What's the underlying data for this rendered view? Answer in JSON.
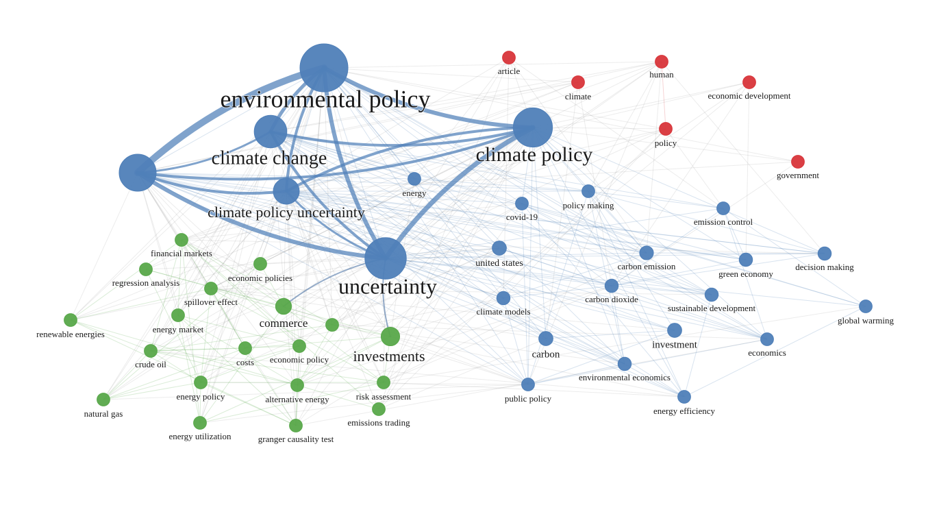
{
  "clusters": {
    "blue": {
      "color": "#4f7fb8"
    },
    "red": {
      "color": "#d8353a"
    },
    "green": {
      "color": "#58a84a"
    }
  },
  "nodes": [
    {
      "id": "environmental-policy",
      "label": "environmental policy",
      "cluster": "blue",
      "weight": 10
    },
    {
      "id": "climate-change",
      "label": "climate change",
      "cluster": "blue",
      "weight": 6.5
    },
    {
      "id": "climate-policy",
      "label": "climate policy",
      "cluster": "blue",
      "weight": 8
    },
    {
      "id": "uncertainty",
      "label": "uncertainty",
      "cluster": "blue",
      "weight": 8.5
    },
    {
      "id": "climate-policy-uncertainty",
      "label": "climate policy uncertainty",
      "cluster": "blue",
      "weight": 5
    },
    {
      "id": "unnamed-hub",
      "label": "",
      "cluster": "blue",
      "weight": 7.5
    },
    {
      "id": "energy",
      "label": "energy",
      "cluster": "blue",
      "weight": 2
    },
    {
      "id": "covid-19",
      "label": "covid-19",
      "cluster": "blue",
      "weight": 2
    },
    {
      "id": "policy-making",
      "label": "policy making",
      "cluster": "blue",
      "weight": 2
    },
    {
      "id": "emission-control",
      "label": "emission control",
      "cluster": "blue",
      "weight": 2
    },
    {
      "id": "united-states",
      "label": "united states",
      "cluster": "blue",
      "weight": 2.3
    },
    {
      "id": "carbon-emission",
      "label": "carbon emission",
      "cluster": "blue",
      "weight": 2.2
    },
    {
      "id": "green-economy",
      "label": "green economy",
      "cluster": "blue",
      "weight": 2.1
    },
    {
      "id": "decision-making",
      "label": "decision making",
      "cluster": "blue",
      "weight": 2.1
    },
    {
      "id": "carbon-dioxide",
      "label": "carbon dioxide",
      "cluster": "blue",
      "weight": 2.1
    },
    {
      "id": "climate-models",
      "label": "climate models",
      "cluster": "blue",
      "weight": 2.1
    },
    {
      "id": "sustainable-development",
      "label": "sustainable development",
      "cluster": "blue",
      "weight": 2.1
    },
    {
      "id": "global-warming",
      "label": "global warming",
      "cluster": "blue",
      "weight": 2
    },
    {
      "id": "carbon",
      "label": "carbon",
      "cluster": "blue",
      "weight": 2.3
    },
    {
      "id": "investment",
      "label": "investment",
      "cluster": "blue",
      "weight": 2.3
    },
    {
      "id": "economics",
      "label": "economics",
      "cluster": "blue",
      "weight": 2
    },
    {
      "id": "environmental-economics",
      "label": "environmental economics",
      "cluster": "blue",
      "weight": 2.1
    },
    {
      "id": "public-policy",
      "label": "public policy",
      "cluster": "blue",
      "weight": 2
    },
    {
      "id": "energy-efficiency",
      "label": "energy efficiency",
      "cluster": "blue",
      "weight": 2
    },
    {
      "id": "article",
      "label": "article",
      "cluster": "red",
      "weight": 2
    },
    {
      "id": "human",
      "label": "human",
      "cluster": "red",
      "weight": 2
    },
    {
      "id": "climate",
      "label": "climate",
      "cluster": "red",
      "weight": 2
    },
    {
      "id": "economic-development",
      "label": "economic development",
      "cluster": "red",
      "weight": 2
    },
    {
      "id": "policy",
      "label": "policy",
      "cluster": "red",
      "weight": 2
    },
    {
      "id": "government",
      "label": "government",
      "cluster": "red",
      "weight": 2
    },
    {
      "id": "financial-markets",
      "label": "financial markets",
      "cluster": "green",
      "weight": 2
    },
    {
      "id": "regression-analysis",
      "label": "regression analysis",
      "cluster": "green",
      "weight": 2
    },
    {
      "id": "economic-policies",
      "label": "economic policies",
      "cluster": "green",
      "weight": 2
    },
    {
      "id": "spillover-effect",
      "label": "spillover effect",
      "cluster": "green",
      "weight": 2
    },
    {
      "id": "commerce",
      "label": "commerce",
      "cluster": "green",
      "weight": 2.7
    },
    {
      "id": "renewable-energies",
      "label": "renewable energies",
      "cluster": "green",
      "weight": 2
    },
    {
      "id": "energy-market",
      "label": "energy market",
      "cluster": "green",
      "weight": 2
    },
    {
      "id": "unnamed-green",
      "label": "",
      "cluster": "green",
      "weight": 2
    },
    {
      "id": "investments",
      "label": "investments",
      "cluster": "green",
      "weight": 3.3
    },
    {
      "id": "crude-oil",
      "label": "crude oil",
      "cluster": "green",
      "weight": 2
    },
    {
      "id": "costs",
      "label": "costs",
      "cluster": "green",
      "weight": 2
    },
    {
      "id": "economic-policy",
      "label": "economic policy",
      "cluster": "green",
      "weight": 2
    },
    {
      "id": "energy-policy",
      "label": "energy policy",
      "cluster": "green",
      "weight": 2
    },
    {
      "id": "alternative-energy",
      "label": "alternative energy",
      "cluster": "green",
      "weight": 2
    },
    {
      "id": "risk-assessment",
      "label": "risk assessment",
      "cluster": "green",
      "weight": 2
    },
    {
      "id": "natural-gas",
      "label": "natural gas",
      "cluster": "green",
      "weight": 2
    },
    {
      "id": "emissions-trading",
      "label": "emissions trading",
      "cluster": "green",
      "weight": 2
    },
    {
      "id": "energy-utilization",
      "label": "energy utilization",
      "cluster": "green",
      "weight": 2
    },
    {
      "id": "granger-causality-test",
      "label": "granger causality test",
      "cluster": "green",
      "weight": 2
    }
  ],
  "strong_links": [
    [
      "environmental-policy",
      "unnamed-hub",
      10
    ],
    [
      "environmental-policy",
      "climate-policy",
      6
    ],
    [
      "environmental-policy",
      "uncertainty",
      6
    ],
    [
      "environmental-policy",
      "climate-change",
      5
    ],
    [
      "environmental-policy",
      "climate-policy-uncertainty",
      4
    ],
    [
      "unnamed-hub",
      "uncertainty",
      6
    ],
    [
      "unnamed-hub",
      "climate-policy",
      4
    ],
    [
      "unnamed-hub",
      "climate-change",
      3
    ],
    [
      "unnamed-hub",
      "climate-policy-uncertainty",
      4
    ],
    [
      "climate-change",
      "climate-policy",
      4
    ],
    [
      "climate-change",
      "uncertainty",
      4
    ],
    [
      "climate-policy",
      "uncertainty",
      7
    ],
    [
      "climate-policy",
      "climate-policy-uncertainty",
      4
    ],
    [
      "climate-policy-uncertainty",
      "uncertainty",
      3
    ],
    [
      "uncertainty",
      "investments",
      2
    ],
    [
      "uncertainty",
      "commerce",
      2
    ]
  ]
}
